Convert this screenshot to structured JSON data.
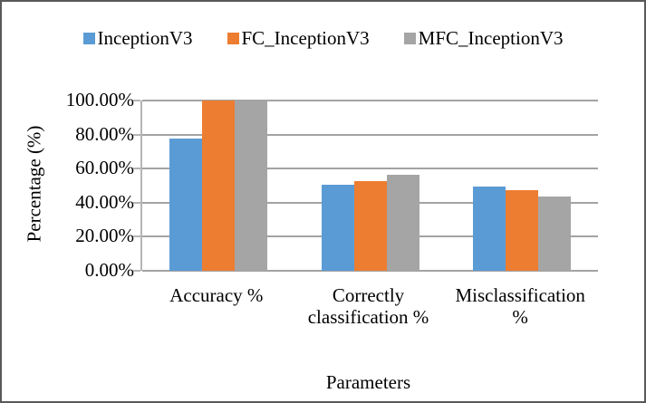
{
  "figure": {
    "border_color": "#595959",
    "background_color": "#ffffff",
    "text_color": "#000000",
    "gridline_color": "#a3a3a3",
    "axis_line_color": "#b5b5b5"
  },
  "chart_data": {
    "type": "bar",
    "title": "",
    "xlabel": "Parameters",
    "ylabel": "Percentage (%)",
    "ylim": [
      0,
      100
    ],
    "grid": true,
    "legend_position": "top",
    "categories": [
      "Accuracy %",
      "Correctly classification %",
      "Misclassification %"
    ],
    "series": [
      {
        "name": "InceptionV3",
        "color": "#5B9BD5",
        "values": [
          77.8,
          50.4,
          49.6
        ]
      },
      {
        "name": "FC_InceptionV3",
        "color": "#ED7D31",
        "values": [
          100.0,
          52.6,
          47.4
        ]
      },
      {
        "name": "MFC_InceptionV3",
        "color": "#A5A5A5",
        "values": [
          100.0,
          56.3,
          43.7
        ]
      }
    ],
    "yticks": [
      {
        "value": 0,
        "label": "0.00%"
      },
      {
        "value": 20,
        "label": "20.00%"
      },
      {
        "value": 40,
        "label": "40.00%"
      },
      {
        "value": 60,
        "label": "60.00%"
      },
      {
        "value": 80,
        "label": "80.00%"
      },
      {
        "value": 100,
        "label": "100.00%"
      }
    ]
  }
}
